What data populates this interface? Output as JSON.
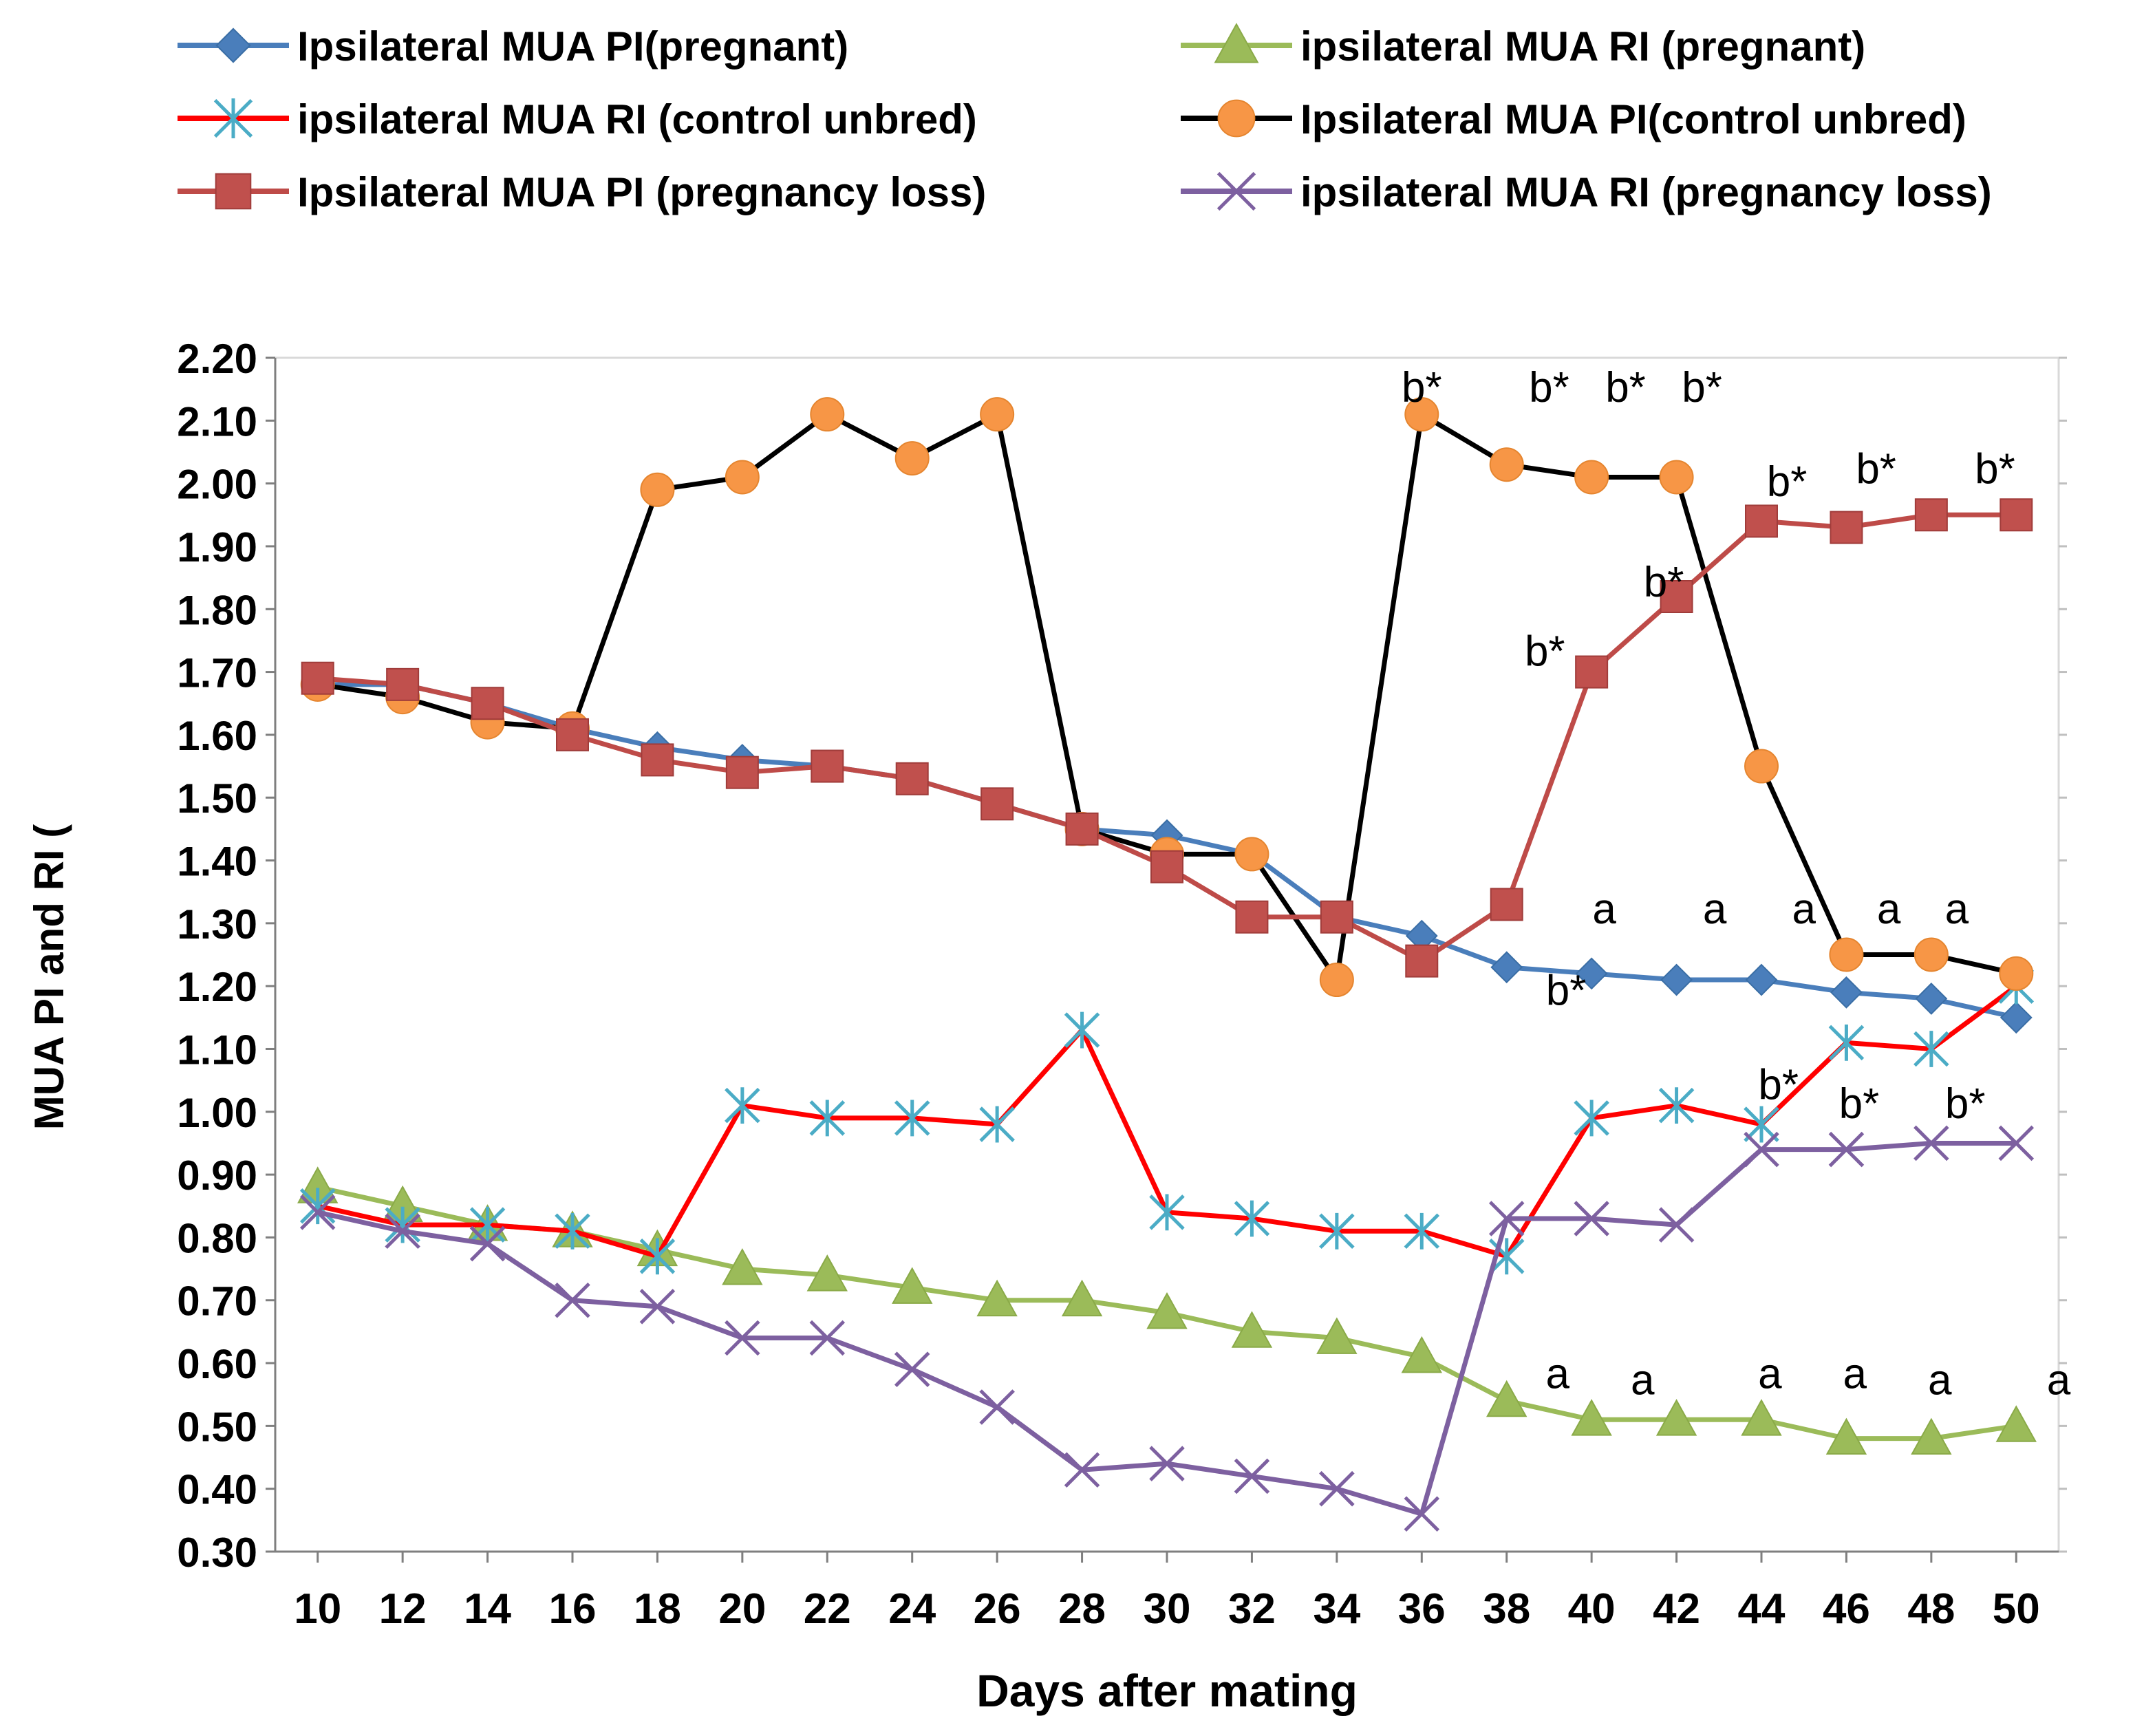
{
  "chart_data": {
    "type": "line",
    "title": "",
    "xlabel": "Days after mating",
    "ylabel": "MUA PI and RI (",
    "x": [
      10,
      12,
      14,
      16,
      18,
      20,
      22,
      24,
      26,
      28,
      30,
      32,
      34,
      36,
      38,
      40,
      42,
      44,
      46,
      48,
      50
    ],
    "xlim": [
      9,
      51
    ],
    "ylim": [
      0.3,
      2.2
    ],
    "y_ticks": [
      "0.30",
      "0.40",
      "0.50",
      "0.60",
      "0.70",
      "0.80",
      "0.90",
      "1.00",
      "1.10",
      "1.20",
      "1.30",
      "1.40",
      "1.50",
      "1.60",
      "1.70",
      "1.80",
      "1.90",
      "2.00",
      "2.10",
      "2.20"
    ],
    "x_ticks": [
      "10",
      "12",
      "14",
      "16",
      "18",
      "20",
      "22",
      "24",
      "26",
      "28",
      "30",
      "32",
      "34",
      "36",
      "38",
      "40",
      "42",
      "44",
      "46",
      "48",
      "50"
    ],
    "legend_position": "top",
    "series": [
      {
        "name": "Ipsilateral MUA PI(pregnant)",
        "color": "#4a7ebb",
        "marker": "diamond",
        "values": [
          1.68,
          1.68,
          1.65,
          1.61,
          1.58,
          1.56,
          1.55,
          1.53,
          1.49,
          1.45,
          1.44,
          1.41,
          1.31,
          1.28,
          1.23,
          1.22,
          1.21,
          1.21,
          1.19,
          1.18,
          1.15
        ]
      },
      {
        "name": "ipsilateral MUA RI (pregnant)",
        "color": "#9bbb59",
        "marker": "triangle",
        "values": [
          0.88,
          0.85,
          0.82,
          0.81,
          0.78,
          0.75,
          0.74,
          0.72,
          0.7,
          0.7,
          0.68,
          0.65,
          0.64,
          0.61,
          0.54,
          0.51,
          0.51,
          0.51,
          0.48,
          0.48,
          0.5
        ]
      },
      {
        "name": "ipsilateral MUA RI (control unbred)",
        "color": "#ff0000",
        "marker": "asterisk",
        "values": [
          0.85,
          0.82,
          0.82,
          0.81,
          0.77,
          1.01,
          0.99,
          0.99,
          0.98,
          1.13,
          0.84,
          0.83,
          0.81,
          0.81,
          0.77,
          0.99,
          1.01,
          0.98,
          1.11,
          1.1,
          1.2
        ]
      },
      {
        "name": "Ipsilateral MUA PI(control unbred)",
        "color": "#000000",
        "marker": "circle",
        "marker_color": "#f79646",
        "values": [
          1.68,
          1.66,
          1.62,
          1.61,
          1.99,
          2.01,
          2.11,
          2.04,
          2.11,
          1.45,
          1.41,
          1.41,
          1.21,
          2.11,
          2.03,
          2.01,
          2.01,
          1.55,
          1.25,
          1.25,
          1.22
        ]
      },
      {
        "name": "Ipsilateral MUA PI (pregnancy loss)",
        "color": "#be4b48",
        "marker": "square",
        "marker_color": "#c0504d",
        "values": [
          1.69,
          1.68,
          1.65,
          1.6,
          1.56,
          1.54,
          1.55,
          1.53,
          1.49,
          1.45,
          1.39,
          1.31,
          1.31,
          1.24,
          1.33,
          1.7,
          1.82,
          1.94,
          1.93,
          1.95,
          1.95
        ]
      },
      {
        "name": "ipsilateral MUA RI (pregnancy loss)",
        "color": "#7d60a0",
        "marker": "x",
        "marker_color": "#7d60a0",
        "values": [
          0.84,
          0.81,
          0.79,
          0.7,
          0.69,
          0.64,
          0.64,
          0.59,
          0.53,
          0.43,
          0.44,
          0.42,
          0.4,
          0.36,
          0.83,
          0.83,
          0.82,
          0.94,
          0.94,
          0.95,
          0.95
        ]
      }
    ],
    "annotations": [
      {
        "text": "b*",
        "x": 36,
        "y": 2.13
      },
      {
        "text": "b*",
        "x": 39,
        "y": 2.13
      },
      {
        "text": "b*",
        "x": 40.8,
        "y": 2.13
      },
      {
        "text": "b*",
        "x": 42.6,
        "y": 2.13
      },
      {
        "text": "b*",
        "x": 44.6,
        "y": 1.98
      },
      {
        "text": "b*",
        "x": 46.7,
        "y": 2.0
      },
      {
        "text": "b*",
        "x": 49.5,
        "y": 2.0
      },
      {
        "text": "b*",
        "x": 41.7,
        "y": 1.82
      },
      {
        "text": "b*",
        "x": 38.9,
        "y": 1.71
      },
      {
        "text": "a",
        "x": 40.3,
        "y": 1.3
      },
      {
        "text": "a",
        "x": 42.9,
        "y": 1.3
      },
      {
        "text": "a",
        "x": 45.0,
        "y": 1.3
      },
      {
        "text": "a",
        "x": 47.0,
        "y": 1.3
      },
      {
        "text": "a",
        "x": 48.6,
        "y": 1.3
      },
      {
        "text": "b*",
        "x": 39.4,
        "y": 1.17
      },
      {
        "text": "b*",
        "x": 44.4,
        "y": 1.02
      },
      {
        "text": "b*",
        "x": 46.3,
        "y": 0.99
      },
      {
        "text": "b*",
        "x": 48.8,
        "y": 0.99
      },
      {
        "text": "a",
        "x": 39.2,
        "y": 0.56
      },
      {
        "text": "a",
        "x": 41.2,
        "y": 0.55
      },
      {
        "text": "a",
        "x": 44.2,
        "y": 0.56
      },
      {
        "text": "a",
        "x": 46.2,
        "y": 0.56
      },
      {
        "text": "a",
        "x": 48.2,
        "y": 0.55
      },
      {
        "text": "a",
        "x": 51.0,
        "y": 0.55
      }
    ]
  }
}
